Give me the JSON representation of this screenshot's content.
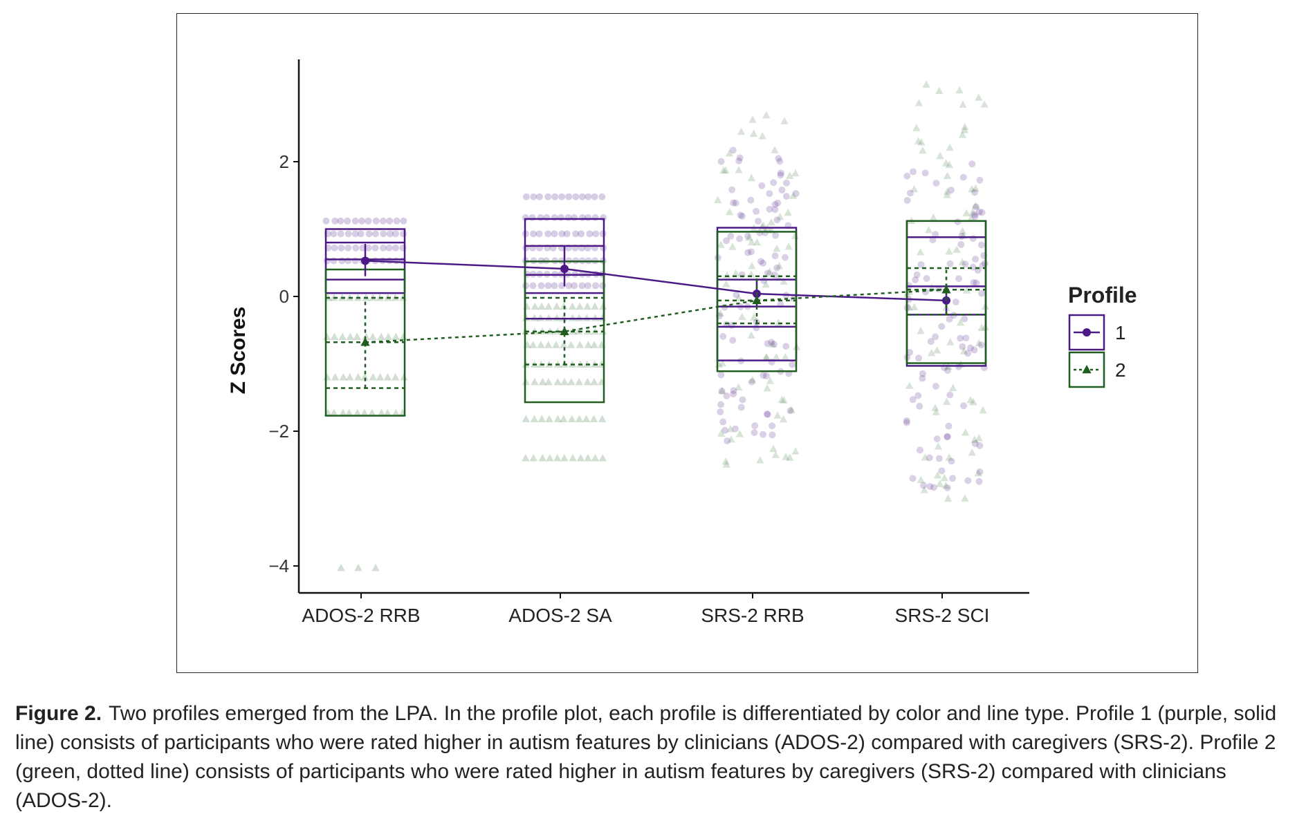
{
  "chart_data": {
    "type": "box",
    "ylabel": "Z Scores",
    "xlabel": "",
    "categories": [
      "ADOS-2 RRB",
      "ADOS-2 SA",
      "SRS-2 RRB",
      "SRS-2 SCI"
    ],
    "ylim": [
      -4.4,
      3.6
    ],
    "yticks": [
      -4,
      -2,
      0,
      2
    ],
    "ytick_labels": [
      "−4",
      "−2",
      "0",
      "2"
    ],
    "grid": false,
    "legend": {
      "title": "Profile",
      "placement": "right",
      "entries": [
        "1",
        "2"
      ]
    },
    "series": [
      {
        "name": "1",
        "color": "#4b1a87",
        "line_style": "solid",
        "marker": "circle",
        "means": [
          0.53,
          0.41,
          0.04,
          -0.06
        ],
        "ci_low": [
          0.3,
          0.15,
          -0.15,
          -0.27
        ],
        "ci_high": [
          0.78,
          0.75,
          0.26,
          0.18
        ],
        "box": [
          {
            "min": 0.05,
            "q1": 0.25,
            "median": 0.55,
            "q3": 0.8,
            "max": 1.0
          },
          {
            "min": -0.33,
            "q1": 0.05,
            "median": 0.32,
            "q3": 0.75,
            "max": 1.15
          },
          {
            "min": -0.95,
            "q1": -0.45,
            "median": -0.15,
            "q3": 0.25,
            "max": 1.02
          },
          {
            "min": -1.03,
            "q1": -0.27,
            "median": 0.15,
            "q3": 0.88,
            "max": 1.12
          }
        ]
      },
      {
        "name": "2",
        "color": "#1f5e1f",
        "line_style": "dotted",
        "marker": "triangle",
        "means": [
          -0.68,
          -0.52,
          -0.06,
          0.1
        ],
        "ci_low": [
          -1.36,
          -1.01,
          -0.4,
          -0.27
        ],
        "ci_high": [
          -0.02,
          -0.02,
          0.3,
          0.42
        ],
        "box": [
          {
            "min": -1.77,
            "q1": -1.36,
            "median": -0.68,
            "q3": -0.02,
            "max": 0.4
          },
          {
            "min": -1.57,
            "q1": -1.01,
            "median": -0.52,
            "q3": -0.02,
            "max": 0.52
          },
          {
            "min": -1.11,
            "q1": -0.4,
            "median": -0.06,
            "q3": 0.3,
            "max": 0.96
          },
          {
            "min": -0.99,
            "q1": -0.27,
            "median": 0.1,
            "q3": 0.42,
            "max": 1.12
          }
        ]
      }
    ],
    "jitter": [
      {
        "p1_levels": [
          1.12,
          0.93,
          0.72,
          0.53
        ],
        "p2_levels": [
          -0.02,
          -0.6,
          -1.2,
          -1.73,
          -4.03
        ],
        "p1_spread": 0,
        "p2_spread": 0
      },
      {
        "p1_levels": [
          1.48,
          1.17,
          0.93,
          0.72,
          0.53,
          0.33,
          0.16
        ],
        "p2_levels": [
          -0.15,
          -0.32,
          -0.52,
          -0.72,
          -1.01,
          -1.27,
          -1.82,
          -2.4
        ],
        "p1_spread": 0,
        "p2_spread": 0
      },
      {
        "p1_range": [
          -2.15,
          2.2
        ],
        "p2_range": [
          -2.5,
          2.7
        ],
        "p1_spread": 1,
        "p2_spread": 1
      },
      {
        "p1_range": [
          -2.85,
          2.15
        ],
        "p2_range": [
          -3.0,
          3.2
        ],
        "p1_spread": 1,
        "p2_spread": 1
      }
    ]
  },
  "caption": {
    "label": "Figure 2.",
    "text": "Two profiles emerged from the LPA. In the profile plot, each profile is differentiated by color and line type. Profile 1 (purple, solid line) consists of participants who were rated higher in autism features by clinicians (ADOS-2) compared with caregivers (SRS-2). Profile 2 (green, dotted line) consists of participants who were rated higher in autism features by caregivers (SRS-2) compared with clinicians (ADOS-2)."
  }
}
